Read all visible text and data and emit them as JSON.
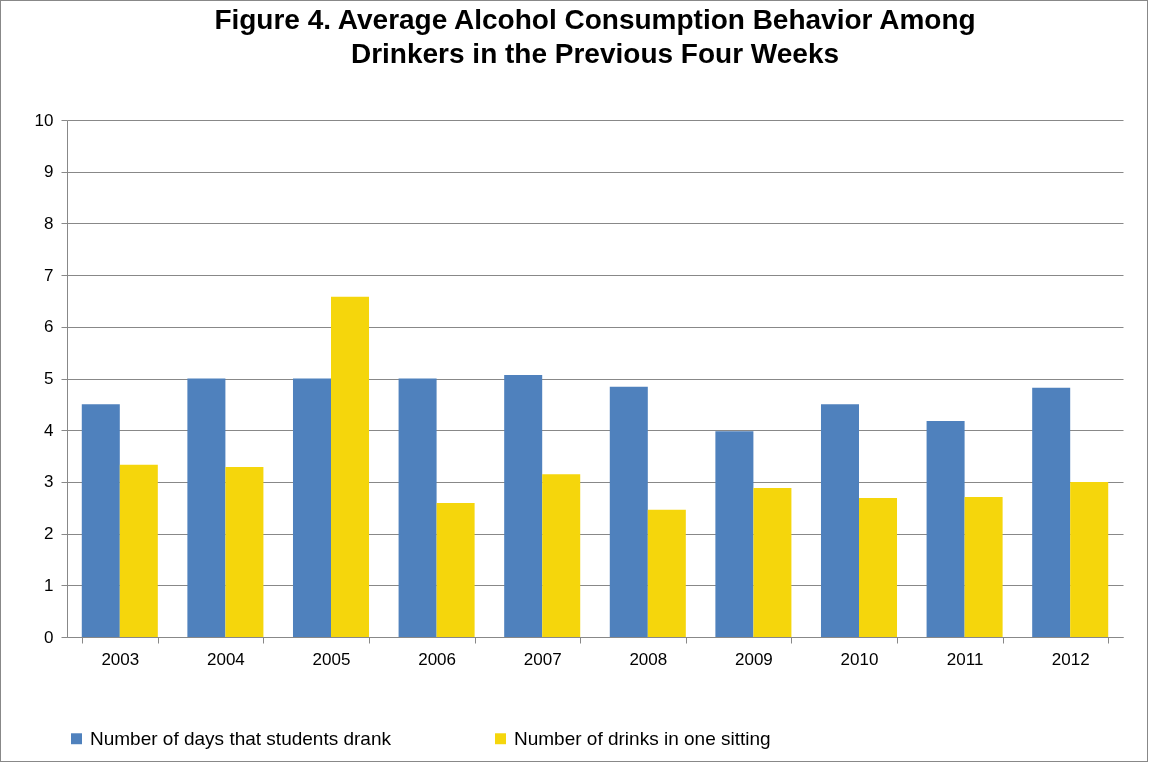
{
  "chart_data": {
    "type": "bar",
    "title": "Figure 4. Average Alcohol Consumption Behavior Among Drinkers in the Previous Four Weeks",
    "categories": [
      "2003",
      "2004",
      "2005",
      "2006",
      "2007",
      "2008",
      "2009",
      "2010",
      "2011",
      "2012"
    ],
    "series": [
      {
        "name": "Number of days that students drank",
        "color": "#4f81bd",
        "values": [
          4.5,
          5.0,
          5.0,
          5.0,
          5.07,
          4.84,
          3.98,
          4.5,
          4.18,
          4.82
        ]
      },
      {
        "name": "Number of drinks in one sitting",
        "color": "#f5d60c",
        "values": [
          3.33,
          3.29,
          6.58,
          2.59,
          3.15,
          2.46,
          2.88,
          2.69,
          2.71,
          3.0
        ]
      }
    ],
    "ylim": [
      0,
      10
    ],
    "yticks": [
      0,
      1,
      2,
      3,
      4,
      5,
      6,
      7,
      8,
      9,
      10
    ],
    "grid": "y",
    "legend": "bottom"
  }
}
